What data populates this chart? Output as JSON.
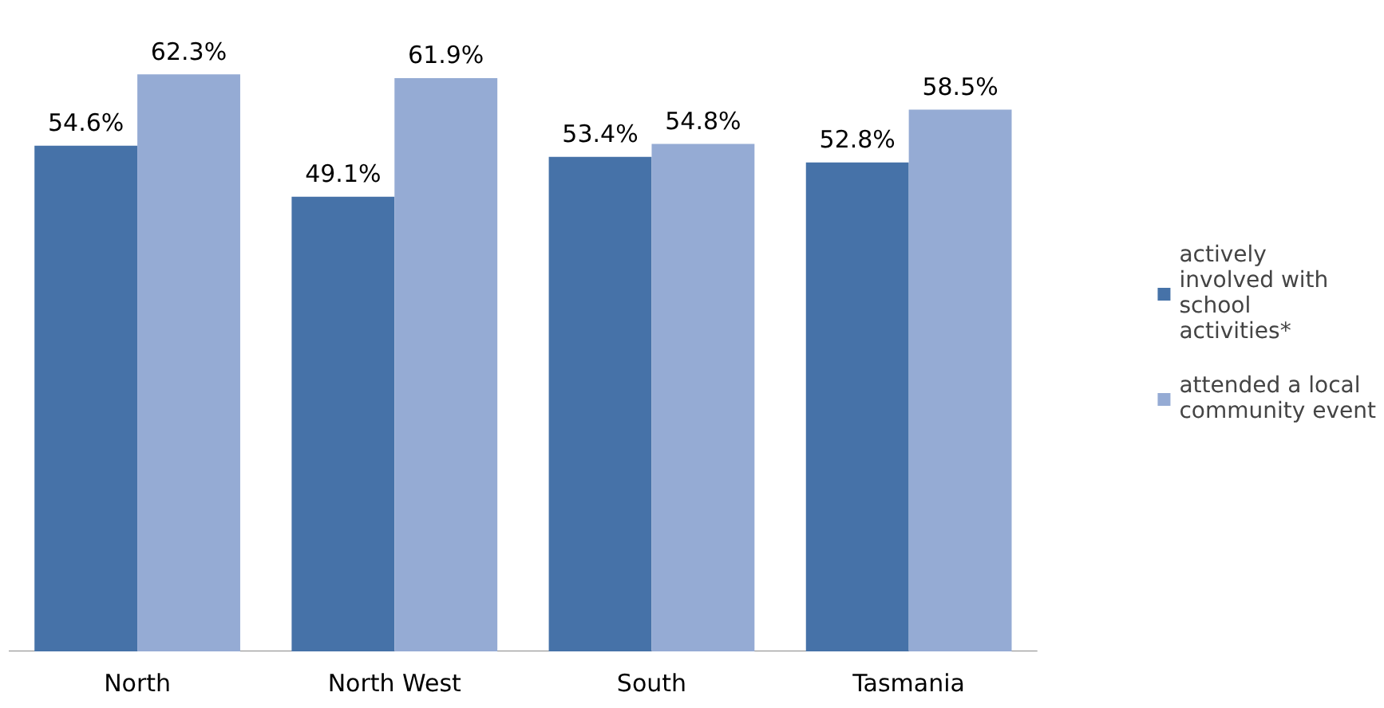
{
  "chart_data": {
    "type": "bar",
    "categories": [
      "North",
      "North West",
      "South",
      "Tasmania"
    ],
    "series": [
      {
        "name": "actively involved with school activities*",
        "color": "#4672a8",
        "values": [
          54.6,
          49.1,
          53.4,
          52.8
        ],
        "value_labels": [
          "54.6%",
          "49.1%",
          "53.4%",
          "52.8%"
        ]
      },
      {
        "name": "attended a local community event",
        "color": "#95abd4",
        "values": [
          62.3,
          61.9,
          54.8,
          58.5
        ],
        "value_labels": [
          "62.3%",
          "61.9%",
          "54.8%",
          "58.5%"
        ]
      }
    ],
    "legend": "right",
    "grid": false
  }
}
